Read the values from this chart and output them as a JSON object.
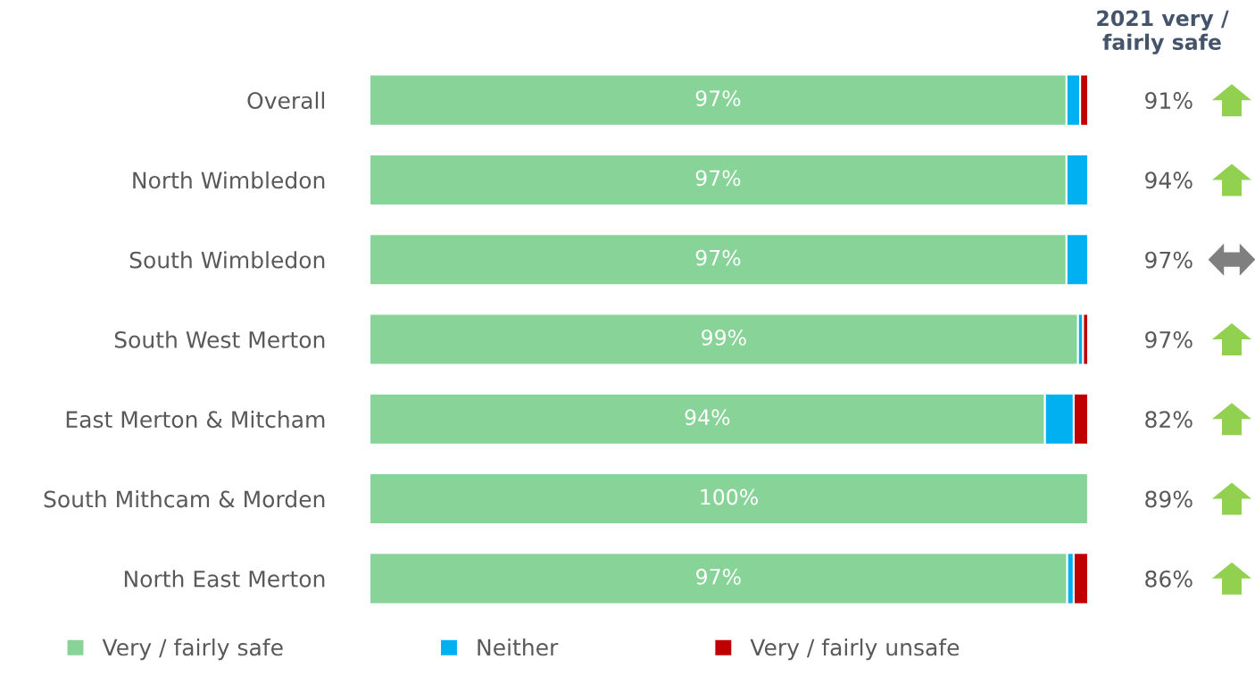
{
  "chart_data": {
    "type": "bar",
    "orientation": "horizontal",
    "stacked": true,
    "xlim": [
      0,
      100
    ],
    "tick_labels": "y",
    "categories": [
      "Overall",
      "North Wimbledon",
      "South Wimbledon",
      "South West Merton",
      "East Merton & Mitcham",
      "South Mithcam & Morden",
      "North East Merton"
    ],
    "series": [
      {
        "name": "Very / fairly safe",
        "color": "#88d498",
        "values": [
          97,
          97,
          97,
          98.6,
          94,
          100,
          97.1
        ],
        "value_labels": [
          "97%",
          "97%",
          "97%",
          "99%",
          "94%",
          "100%",
          "97%"
        ]
      },
      {
        "name": "Neither",
        "color": "#00b0f0",
        "values": [
          1.9,
          3,
          3,
          0.7,
          4,
          null,
          0.9
        ]
      },
      {
        "name": "Very / fairly unsafe",
        "color": "#c00000",
        "values": [
          1.1,
          null,
          null,
          0.7,
          2,
          null,
          2
        ]
      }
    ],
    "y2label": "2021 very / fairly safe",
    "y2_categories": [
      "91%",
      "94%",
      "97%",
      "97%",
      "82%",
      "89%",
      "86%"
    ],
    "legend": "bottom",
    "grid": false
  }
}
